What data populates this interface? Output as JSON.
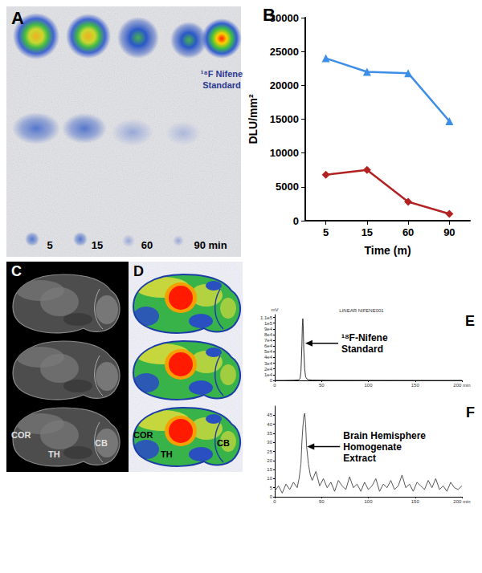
{
  "chart_data": [
    {
      "type": "line",
      "title": "B",
      "x_label": "Time (m)",
      "y_label": "DLU/mm²",
      "categories": [
        "5",
        "15",
        "60",
        "90"
      ],
      "series": [
        {
          "color": "#3d8ee6",
          "marker": "triangle",
          "line_style": "solid",
          "values": [
            24000,
            22000,
            21800,
            14700
          ]
        },
        {
          "color": "#b22222",
          "marker": "diamond",
          "line_style": "solid",
          "values": [
            6800,
            7500,
            2800,
            1000
          ]
        }
      ],
      "ylim": [
        0,
        30000
      ],
      "yticks": [
        0,
        5000,
        10000,
        15000,
        20000,
        25000,
        30000
      ],
      "grid": false
    },
    {
      "type": "line",
      "title": "E",
      "subtitle": "LINEAR NIFENE001",
      "y_label": "mV",
      "annotations": [
        "¹⁸F-Nifene Standard"
      ],
      "color": "#333333",
      "x": [
        0,
        10,
        20,
        25,
        27,
        28,
        29,
        29.5,
        30,
        30.5,
        31,
        32,
        33,
        35,
        40,
        60,
        100,
        150,
        200
      ],
      "values": [
        0,
        0,
        300,
        800,
        3000,
        15000,
        60000,
        95000,
        108000,
        90000,
        55000,
        20000,
        6000,
        1500,
        500,
        200,
        100,
        0,
        0
      ],
      "xlim": [
        0,
        200
      ],
      "xticks": [
        0,
        50,
        100,
        150,
        {
          "value": 200,
          "label": "200 min"
        }
      ],
      "ylim": [
        0,
        115000
      ],
      "yticks": [
        0,
        {
          "value": 10000,
          "label": "1e4"
        },
        {
          "value": 20000,
          "label": "2e4"
        },
        {
          "value": 30000,
          "label": "3e4"
        },
        {
          "value": 40000,
          "label": "4e4"
        },
        {
          "value": 50000,
          "label": "5e4"
        },
        {
          "value": 60000,
          "label": "6e4"
        },
        {
          "value": 70000,
          "label": "7e4"
        },
        {
          "value": 80000,
          "label": "8e4"
        },
        {
          "value": 90000,
          "label": "9e4"
        },
        {
          "value": 100000,
          "label": "1e5"
        },
        {
          "value": 110000,
          "label": "1.1e5"
        }
      ],
      "grid": false
    },
    {
      "type": "line",
      "title": "F",
      "annotations": [
        "Brain Hemisphere Homogenate Extract"
      ],
      "color": "#555555",
      "x": [
        0,
        4,
        8,
        12,
        16,
        20,
        24,
        26,
        28,
        29,
        30,
        31,
        32,
        33,
        34,
        36,
        38,
        40,
        44,
        48,
        52,
        56,
        60,
        64,
        68,
        72,
        76,
        80,
        84,
        88,
        92,
        96,
        100,
        104,
        108,
        112,
        116,
        120,
        124,
        128,
        132,
        136,
        140,
        144,
        148,
        152,
        156,
        160,
        164,
        168,
        172,
        176,
        180,
        184,
        188,
        192,
        196,
        200
      ],
      "values": [
        3,
        6,
        2,
        7,
        4,
        8,
        5,
        10,
        18,
        30,
        38,
        44,
        46,
        40,
        28,
        18,
        12,
        9,
        14,
        6,
        10,
        5,
        8,
        3,
        9,
        6,
        4,
        11,
        5,
        7,
        3,
        8,
        4,
        6,
        10,
        3,
        7,
        5,
        9,
        4,
        6,
        12,
        5,
        7,
        3,
        8,
        6,
        4,
        9,
        5,
        10,
        4,
        6,
        3,
        8,
        5,
        4,
        6
      ],
      "xlim": [
        0,
        200
      ],
      "xticks": [
        0,
        50,
        100,
        150,
        {
          "value": 200,
          "label": "200 min"
        }
      ],
      "ylim": [
        0,
        50
      ],
      "yticks": [
        0,
        5,
        10,
        15,
        20,
        25,
        30,
        35,
        40,
        45
      ],
      "grid": false
    }
  ],
  "panel_a": {
    "label": "A",
    "time_labels": [
      "5",
      "15",
      "60",
      "90 min"
    ],
    "standard_label": "¹⁸F Nifene Standard"
  },
  "panel_c": {
    "label": "C",
    "regions": [
      "COR",
      "TH",
      "CB"
    ]
  },
  "panel_d": {
    "label": "D",
    "regions": [
      "COR",
      "TH",
      "CB"
    ]
  }
}
